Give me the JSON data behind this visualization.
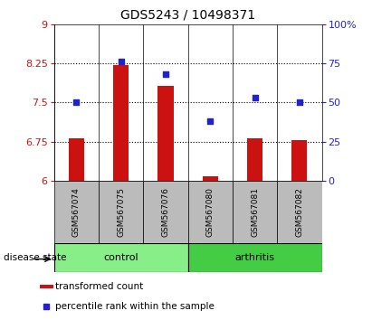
{
  "title": "GDS5243 / 10498371",
  "samples": [
    "GSM567074",
    "GSM567075",
    "GSM567076",
    "GSM567080",
    "GSM567081",
    "GSM567082"
  ],
  "red_values": [
    6.82,
    8.22,
    7.82,
    6.08,
    6.82,
    6.78
  ],
  "blue_values": [
    50,
    76,
    68,
    38,
    53,
    50
  ],
  "ylim_left": [
    6,
    9
  ],
  "ylim_right": [
    0,
    100
  ],
  "yticks_left": [
    6,
    6.75,
    7.5,
    8.25,
    9
  ],
  "ytick_labels_left": [
    "6",
    "6.75",
    "7.5",
    "8.25",
    "9"
  ],
  "yticks_right": [
    0,
    25,
    50,
    75,
    100
  ],
  "ytick_labels_right": [
    "0",
    "25",
    "50",
    "75",
    "100%"
  ],
  "hlines": [
    6.75,
    7.5,
    8.25
  ],
  "bar_bottom": 6,
  "bar_color": "#cc1111",
  "dot_color": "#2222cc",
  "control_color": "#88ee88",
  "arthritis_color": "#44cc44",
  "sample_bg_color": "#bbbbbb",
  "legend_red_label": "transformed count",
  "legend_blue_label": "percentile rank within the sample",
  "group_label": "disease state",
  "title_fontsize": 10,
  "fig_width": 4.11,
  "fig_height": 3.54
}
